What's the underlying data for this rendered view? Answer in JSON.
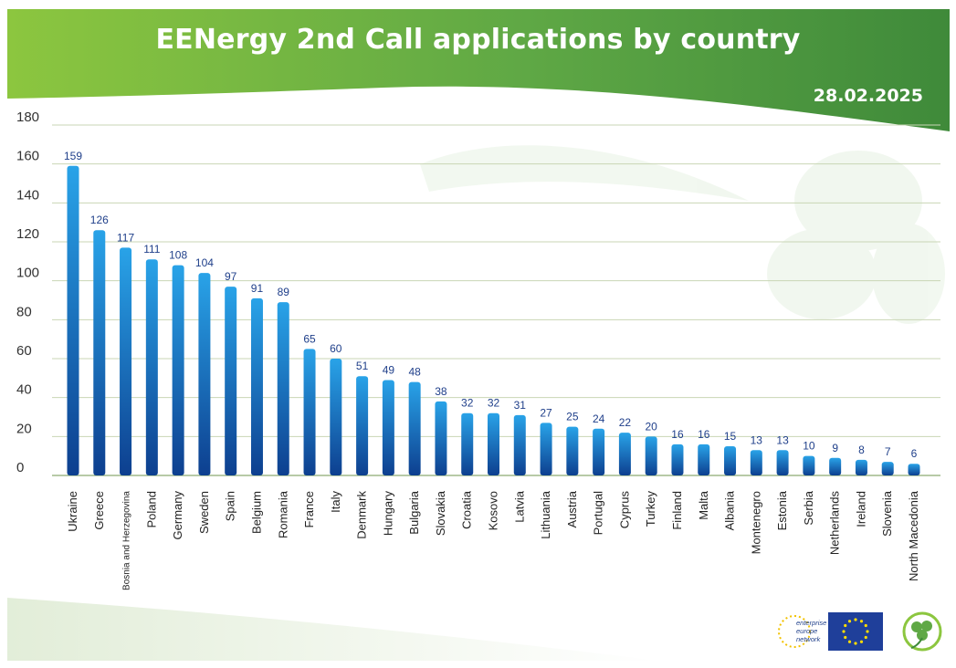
{
  "header": {
    "title": "EENergy 2nd Call applications by country",
    "date": "28.02.2025"
  },
  "colors": {
    "header_green_light": "#8cc63f",
    "header_green_dark": "#3f8a3a",
    "bar_light": "#29a3e8",
    "bar_dark": "#0d3f8f",
    "value_label": "#1f3f8a",
    "gridline": "#c9d6b5"
  },
  "logos": {
    "een_text": "enterprise europe network",
    "icons": [
      "een-logo-icon",
      "eu-flag-icon",
      "clover-logo-icon"
    ]
  },
  "chart_data": {
    "type": "bar",
    "title": "EENergy 2nd Call applications by country",
    "xlabel": "",
    "ylabel": "",
    "ylim": [
      0,
      180
    ],
    "yticks": [
      0,
      20,
      40,
      60,
      80,
      100,
      120,
      140,
      160,
      180
    ],
    "grid": true,
    "categories": [
      "Ukraine",
      "Greece",
      "Bosnia and Herzegovina",
      "Poland",
      "Germany",
      "Sweden",
      "Spain",
      "Belgium",
      "Romania",
      "France",
      "Italy",
      "Denmark",
      "Hungary",
      "Bulgaria",
      "Slovakia",
      "Croatia",
      "Kosovo",
      "Latvia",
      "Lithuania",
      "Austria",
      "Portugal",
      "Cyprus",
      "Turkey",
      "Finland",
      "Malta",
      "Albania",
      "Montenegro",
      "Estonia",
      "Serbia",
      "Netherlands",
      "Ireland",
      "Slovenia",
      "North Macedonia"
    ],
    "values": [
      159,
      126,
      117,
      111,
      108,
      104,
      97,
      91,
      89,
      65,
      60,
      51,
      49,
      48,
      38,
      32,
      32,
      31,
      27,
      25,
      24,
      22,
      20,
      16,
      16,
      15,
      13,
      13,
      10,
      9,
      8,
      7,
      6
    ]
  }
}
